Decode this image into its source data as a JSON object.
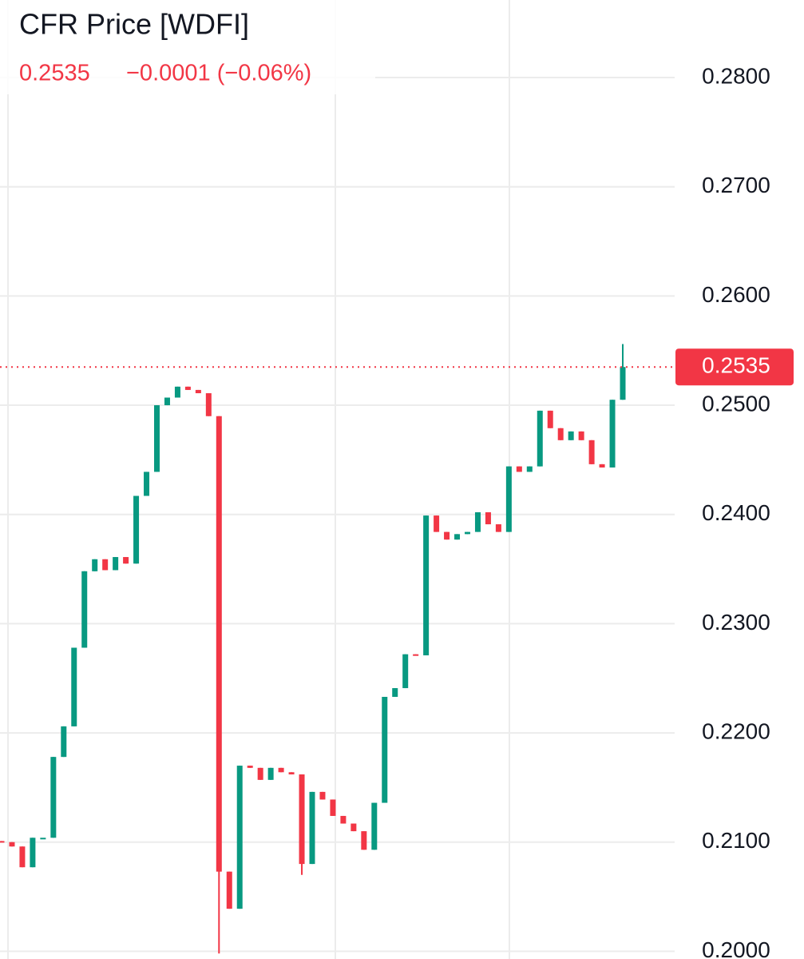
{
  "chart_data": {
    "type": "candlestick",
    "title": "CFR Price [WDFI]",
    "last_price": 0.2535,
    "change": "−0.0001 (−0.06%)",
    "up_color": "#089981",
    "down_color": "#f23645",
    "open": [
      0.2101,
      0.21,
      0.2096,
      0.2077,
      0.2104,
      0.2104,
      0.2178,
      0.2206,
      0.2278,
      0.2348,
      0.2359,
      0.2349,
      0.2361,
      0.2355,
      0.2417,
      0.2439,
      0.25,
      0.2507,
      0.2517,
      0.2514,
      0.2511,
      0.249,
      0.2073,
      0.2039,
      0.217,
      0.2168,
      0.2157,
      0.2168,
      0.2164,
      0.2162,
      0.208,
      0.2146,
      0.2139,
      0.2124,
      0.2117,
      0.211,
      0.2093,
      0.2136,
      0.2233,
      0.2241,
      0.2272,
      0.2271,
      0.2399,
      0.2384,
      0.2377,
      0.2382,
      0.2384,
      0.2402,
      0.2391,
      0.2384,
      0.2444,
      0.2439,
      0.2444,
      0.2495,
      0.2479,
      0.2468,
      0.2476,
      0.2468,
      0.2446,
      0.2443,
      0.2505
    ],
    "high": [
      0.2101,
      0.21,
      0.2096,
      0.2104,
      0.2104,
      0.2178,
      0.2206,
      0.2278,
      0.2348,
      0.2359,
      0.2359,
      0.2361,
      0.2361,
      0.2417,
      0.2439,
      0.25,
      0.2507,
      0.2517,
      0.2517,
      0.2514,
      0.2511,
      0.249,
      0.2073,
      0.217,
      0.217,
      0.2168,
      0.2168,
      0.2168,
      0.2164,
      0.2162,
      0.2146,
      0.2146,
      0.2139,
      0.2124,
      0.2117,
      0.211,
      0.2136,
      0.2233,
      0.2241,
      0.2272,
      0.2272,
      0.2399,
      0.2399,
      0.2384,
      0.2382,
      0.2384,
      0.2402,
      0.2402,
      0.2391,
      0.2444,
      0.2444,
      0.2444,
      0.2495,
      0.2495,
      0.2479,
      0.2476,
      0.2476,
      0.2468,
      0.2446,
      0.2505,
      0.2556
    ],
    "low": [
      0.21,
      0.2096,
      0.2077,
      0.2077,
      0.2104,
      0.2104,
      0.2178,
      0.2206,
      0.2278,
      0.2348,
      0.2349,
      0.2349,
      0.2355,
      0.2355,
      0.2417,
      0.2439,
      0.25,
      0.2507,
      0.2514,
      0.2511,
      0.249,
      0.1998,
      0.2039,
      0.2039,
      0.2168,
      0.2157,
      0.2157,
      0.2164,
      0.2162,
      0.207,
      0.208,
      0.2139,
      0.2124,
      0.2117,
      0.211,
      0.2093,
      0.2093,
      0.2136,
      0.2233,
      0.2241,
      0.2271,
      0.2271,
      0.2384,
      0.2377,
      0.2377,
      0.2382,
      0.2384,
      0.2391,
      0.2384,
      0.2384,
      0.2439,
      0.2439,
      0.2444,
      0.2479,
      0.2468,
      0.2468,
      0.2468,
      0.2446,
      0.2443,
      0.2443,
      0.2505
    ],
    "close": [
      0.21,
      0.2096,
      0.2077,
      0.2104,
      0.2104,
      0.2178,
      0.2206,
      0.2278,
      0.2348,
      0.2359,
      0.2349,
      0.2361,
      0.2355,
      0.2417,
      0.2439,
      0.25,
      0.2507,
      0.2517,
      0.2514,
      0.2511,
      0.249,
      0.2073,
      0.2039,
      0.217,
      0.2168,
      0.2157,
      0.2168,
      0.2164,
      0.2162,
      0.208,
      0.2146,
      0.2139,
      0.2124,
      0.2117,
      0.211,
      0.2093,
      0.2136,
      0.2233,
      0.2241,
      0.2272,
      0.2271,
      0.2399,
      0.2384,
      0.2377,
      0.2382,
      0.2384,
      0.2402,
      0.2391,
      0.2384,
      0.2444,
      0.2439,
      0.2444,
      0.2495,
      0.2479,
      0.2468,
      0.2476,
      0.2468,
      0.2446,
      0.2443,
      0.2505,
      0.2535
    ],
    "ylim": [
      0.1993,
      0.2871
    ],
    "yticks": [
      {
        "value": 0.2,
        "label": "0.2000"
      },
      {
        "value": 0.21,
        "label": "0.2100"
      },
      {
        "value": 0.22,
        "label": "0.2200"
      },
      {
        "value": 0.23,
        "label": "0.2300"
      },
      {
        "value": 0.24,
        "label": "0.2400"
      },
      {
        "value": 0.25,
        "label": "0.2500"
      },
      {
        "value": 0.26,
        "label": "0.2600"
      },
      {
        "value": 0.27,
        "label": "0.2700"
      },
      {
        "value": 0.28,
        "label": "0.2800"
      }
    ],
    "grid": true
  }
}
